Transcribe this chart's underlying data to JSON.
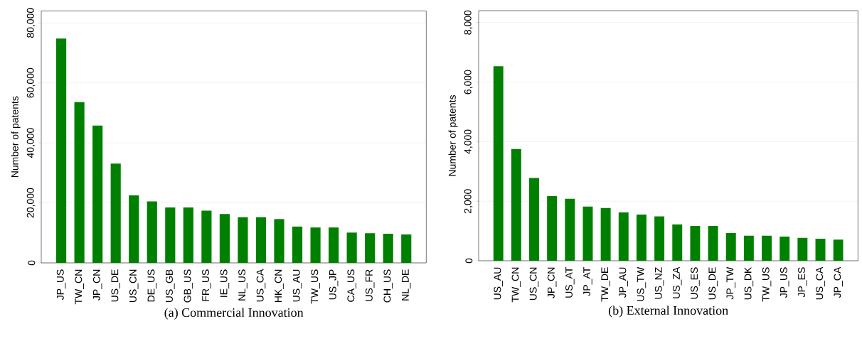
{
  "chart_data": [
    {
      "type": "bar",
      "title": "(a) Commercial Innovation",
      "ylabel": "Number of patents",
      "categories": [
        "JP_US",
        "TW_CN",
        "JP_CN",
        "US_DE",
        "US_CN",
        "DE_US",
        "US_GB",
        "GB_US",
        "FR_US",
        "IE_US",
        "NL_US",
        "US_CA",
        "HK_CN",
        "US_AU",
        "TW_US",
        "US_JP",
        "CA_US",
        "US_FR",
        "CH_US",
        "NL_DE"
      ],
      "values": [
        74800,
        53600,
        45800,
        33100,
        22500,
        20500,
        18500,
        18500,
        17400,
        16300,
        15200,
        15200,
        14600,
        12100,
        11800,
        11800,
        10100,
        9900,
        9700,
        9500
      ],
      "color": "#008000",
      "ylim": [
        0,
        84000
      ],
      "yticks": [
        0,
        {
          "value": 20000,
          "label": "20,000"
        },
        {
          "value": 40000,
          "label": "40,000"
        },
        {
          "value": 60000,
          "label": "60,000"
        },
        {
          "value": 80000,
          "label": "80,000"
        }
      ],
      "grid": "y"
    },
    {
      "type": "bar",
      "title": "(b) External Innovation",
      "ylabel": "Number of patents",
      "categories": [
        "US_AU",
        "TW_CN",
        "US_CN",
        "JP_CN",
        "US_AT",
        "JP_AT",
        "TW_DE",
        "JP_AU",
        "US_TW",
        "US_NZ",
        "US_ZA",
        "US_ES",
        "US_DE",
        "JP_TW",
        "US_DK",
        "TW_US",
        "JP_US",
        "JP_ES",
        "US_CA",
        "JP_CA"
      ],
      "values": [
        6530,
        3750,
        2780,
        2170,
        2080,
        1820,
        1770,
        1620,
        1550,
        1490,
        1220,
        1170,
        1170,
        930,
        840,
        840,
        810,
        770,
        740,
        710
      ],
      "color": "#008000",
      "ylim": [
        0,
        8400
      ],
      "yticks": [
        0,
        {
          "value": 2000,
          "label": "2,000"
        },
        {
          "value": 4000,
          "label": "4,000"
        },
        {
          "value": 6000,
          "label": "6,000"
        },
        {
          "value": 8000,
          "label": "8,000"
        }
      ],
      "grid": "y"
    }
  ]
}
